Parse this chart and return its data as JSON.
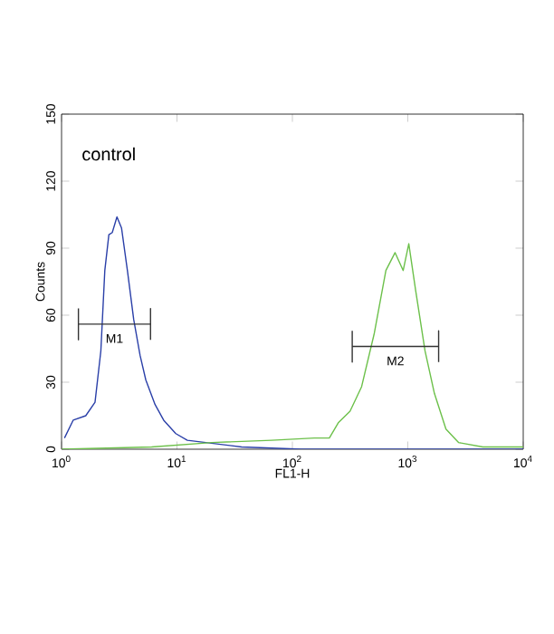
{
  "chart_data": {
    "type": "line",
    "xlabel": "FL1-H",
    "ylabel": "Counts",
    "log": "x",
    "xlim": [
      1,
      10000
    ],
    "ylim": [
      0,
      150
    ],
    "xticks": [
      {
        "value": 1,
        "label": "10$^{0}$"
      },
      {
        "value": 10,
        "label": "10$^{1}$"
      },
      {
        "value": 100,
        "label": "10$^{2}$"
      },
      {
        "value": 1000,
        "label": "10$^{3}$"
      },
      {
        "value": 10000,
        "label": "10$^{4}$"
      }
    ],
    "yticks": [
      0,
      30,
      60,
      90,
      120,
      150
    ],
    "grid": false,
    "series": [
      {
        "color": "#2a3fa8",
        "x": [
          1.06,
          1.26,
          1.62,
          1.95,
          2.19,
          2.37,
          2.57,
          2.75,
          3.02,
          3.31,
          3.72,
          4.22,
          4.79,
          5.37,
          6.46,
          7.67,
          9.77,
          12.3,
          17.8,
          36.3,
          120,
          3980,
          10000
        ],
        "values": [
          5,
          13,
          15,
          21,
          44,
          80,
          96,
          97,
          104,
          99,
          80,
          58,
          42,
          31,
          20,
          13,
          7,
          4,
          3,
          1,
          0,
          0,
          0
        ]
      },
      {
        "color": "#6cc04a",
        "x": [
          1,
          6.03,
          20,
          66,
          155,
          209,
          251,
          316,
          398,
          513,
          646,
          776,
          912,
          1020,
          1170,
          1410,
          1700,
          2140,
          2750,
          4470,
          10000
        ],
        "values": [
          0,
          1,
          3,
          4,
          5,
          5,
          12,
          17,
          28,
          52,
          80,
          88,
          80,
          92,
          71,
          44,
          25,
          9,
          3,
          1,
          1
        ]
      },
      {
        "name": "M1",
        "color": "#333333",
        "x": [
          1.4,
          1.4,
          1.4,
          5.9,
          5.9,
          5.9
        ],
        "values": [
          63,
          49,
          56,
          56,
          63,
          49
        ]
      },
      {
        "name": "M2",
        "color": "#333333",
        "x": [
          330,
          330,
          330,
          1850,
          1850,
          1850
        ],
        "values": [
          53,
          39,
          46,
          46,
          53,
          39
        ]
      }
    ],
    "annotations": [
      "control"
    ]
  }
}
